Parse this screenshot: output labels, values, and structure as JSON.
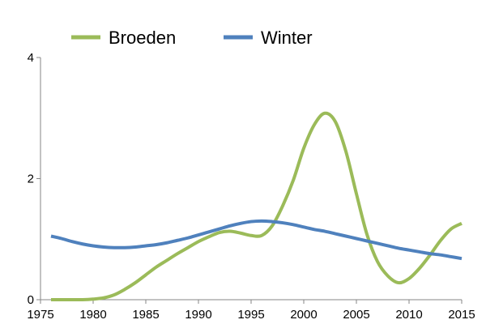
{
  "chart_data": {
    "type": "line",
    "title": "",
    "xlabel": "",
    "ylabel": "",
    "xlim": [
      1975,
      2015
    ],
    "ylim": [
      0,
      4
    ],
    "x_ticks": [
      1975,
      1980,
      1985,
      1990,
      1995,
      2000,
      2005,
      2010,
      2015
    ],
    "y_ticks": [
      0,
      2,
      4
    ],
    "grid": false,
    "legend_position": "top-left",
    "series": [
      {
        "name": "Broeden",
        "color": "#9BBB59",
        "x": [
          1976,
          1977,
          1978,
          1979,
          1980,
          1981,
          1982,
          1983,
          1984,
          1985,
          1986,
          1987,
          1988,
          1989,
          1990,
          1991,
          1992,
          1993,
          1994,
          1995,
          1996,
          1997,
          1998,
          1999,
          2000,
          2001,
          2002,
          2003,
          2004,
          2005,
          2006,
          2007,
          2008,
          2009,
          2010,
          2011,
          2012,
          2013,
          2014,
          2015
        ],
        "values": [
          0.0,
          0.0,
          0.0,
          0.0,
          0.01,
          0.03,
          0.08,
          0.17,
          0.28,
          0.41,
          0.54,
          0.65,
          0.76,
          0.86,
          0.96,
          1.04,
          1.11,
          1.13,
          1.1,
          1.06,
          1.06,
          1.22,
          1.55,
          1.97,
          2.5,
          2.89,
          3.08,
          2.94,
          2.45,
          1.75,
          1.08,
          0.63,
          0.39,
          0.28,
          0.35,
          0.52,
          0.74,
          0.98,
          1.17,
          1.26
        ]
      },
      {
        "name": "Winter",
        "color": "#4F81BD",
        "x": [
          1976,
          1977,
          1978,
          1979,
          1980,
          1981,
          1982,
          1983,
          1984,
          1985,
          1986,
          1987,
          1988,
          1989,
          1990,
          1991,
          1992,
          1993,
          1994,
          1995,
          1996,
          1997,
          1998,
          1999,
          2000,
          2001,
          2002,
          2003,
          2004,
          2005,
          2006,
          2007,
          2008,
          2009,
          2010,
          2011,
          2012,
          2013,
          2014,
          2015
        ],
        "values": [
          1.05,
          1.01,
          0.96,
          0.92,
          0.89,
          0.87,
          0.86,
          0.86,
          0.87,
          0.89,
          0.91,
          0.94,
          0.98,
          1.02,
          1.07,
          1.12,
          1.17,
          1.22,
          1.26,
          1.29,
          1.3,
          1.29,
          1.27,
          1.24,
          1.2,
          1.16,
          1.13,
          1.09,
          1.05,
          1.01,
          0.97,
          0.93,
          0.89,
          0.85,
          0.82,
          0.79,
          0.76,
          0.74,
          0.71,
          0.68
        ]
      }
    ]
  }
}
